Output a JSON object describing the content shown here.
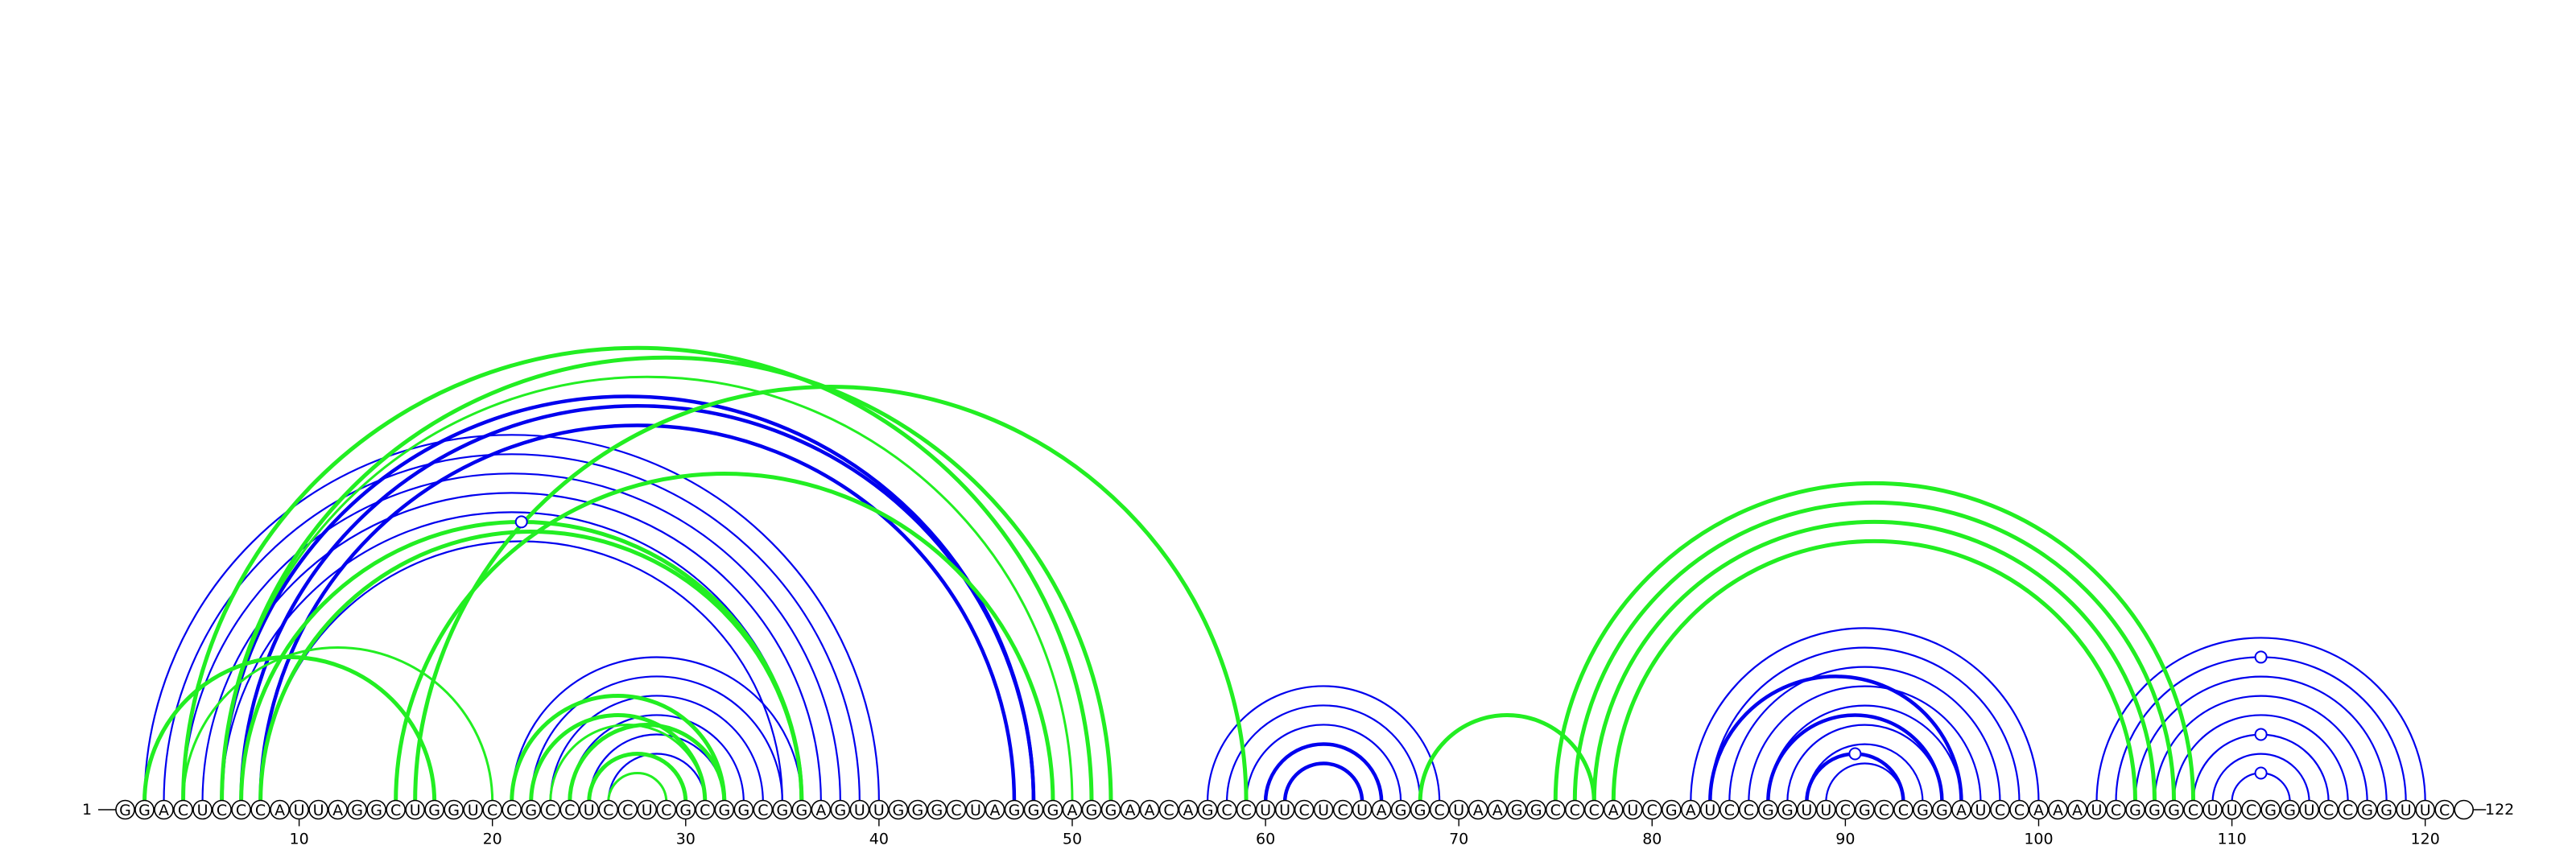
{
  "sequence": {
    "letters": "GGACUCCCAUUAGGCUGGUCCGCCUCCUCGCGGCGGAGUUGGGCUAGGGAGGAACAGCCUUCUCUAGGCUAAGGCCCAUCGAUCCGGUUCGCCGGAUCCAAAUCGGGCUUCGGUCCGGUUC",
    "start_label": "1",
    "end_label": "122",
    "length": 122
  },
  "axis": {
    "ticks": [
      10,
      20,
      30,
      40,
      50,
      60,
      70,
      80,
      90,
      100,
      110,
      120
    ]
  },
  "colors": {
    "blue": "#0000ee",
    "green": "#22ee22",
    "nucleotide_outline": "#000000"
  },
  "arcs": {
    "blue_thin": [
      [
        2,
        40
      ],
      [
        3,
        39
      ],
      [
        4,
        38
      ],
      [
        5,
        37
      ],
      [
        6,
        36
      ],
      [
        8,
        35
      ],
      [
        21,
        36
      ],
      [
        22,
        35
      ],
      [
        23,
        34
      ],
      [
        24,
        33
      ],
      [
        25,
        32
      ],
      [
        26,
        31
      ],
      [
        57,
        69
      ],
      [
        58,
        68
      ],
      [
        59,
        67
      ],
      [
        82,
        100
      ],
      [
        83,
        99
      ],
      [
        84,
        98
      ],
      [
        85,
        97
      ],
      [
        86,
        96
      ],
      [
        87,
        95
      ],
      [
        88,
        94
      ],
      [
        89,
        93
      ],
      [
        103,
        120
      ],
      [
        104,
        119
      ],
      [
        105,
        118
      ],
      [
        106,
        117
      ],
      [
        107,
        116
      ],
      [
        108,
        115
      ],
      [
        109,
        114
      ],
      [
        110,
        113
      ]
    ],
    "blue_thick": [
      [
        6,
        48
      ],
      [
        7,
        48
      ],
      [
        8,
        47
      ],
      [
        60,
        66
      ],
      [
        61,
        65
      ],
      [
        83,
        96
      ],
      [
        86,
        95
      ],
      [
        88,
        93
      ]
    ],
    "green_thick": [
      [
        2,
        17
      ],
      [
        4,
        51
      ],
      [
        6,
        52
      ],
      [
        7,
        36
      ],
      [
        8,
        36
      ],
      [
        15,
        49
      ],
      [
        21,
        32
      ],
      [
        22,
        31
      ],
      [
        24,
        32
      ],
      [
        25,
        30
      ],
      [
        16,
        59
      ],
      [
        68,
        77
      ],
      [
        75,
        108
      ],
      [
        76,
        107
      ],
      [
        77,
        106
      ],
      [
        78,
        105
      ]
    ],
    "green_thin": [
      [
        4,
        20
      ],
      [
        6,
        50
      ],
      [
        23,
        31
      ],
      [
        26,
        29
      ]
    ],
    "dot_markers": [
      {
        "i": 7,
        "j": 36
      },
      {
        "i": 88,
        "j": 93
      },
      {
        "i": 108,
        "j": 115
      },
      {
        "i": 110,
        "j": 113
      },
      {
        "i": 104,
        "j": 119
      }
    ]
  }
}
